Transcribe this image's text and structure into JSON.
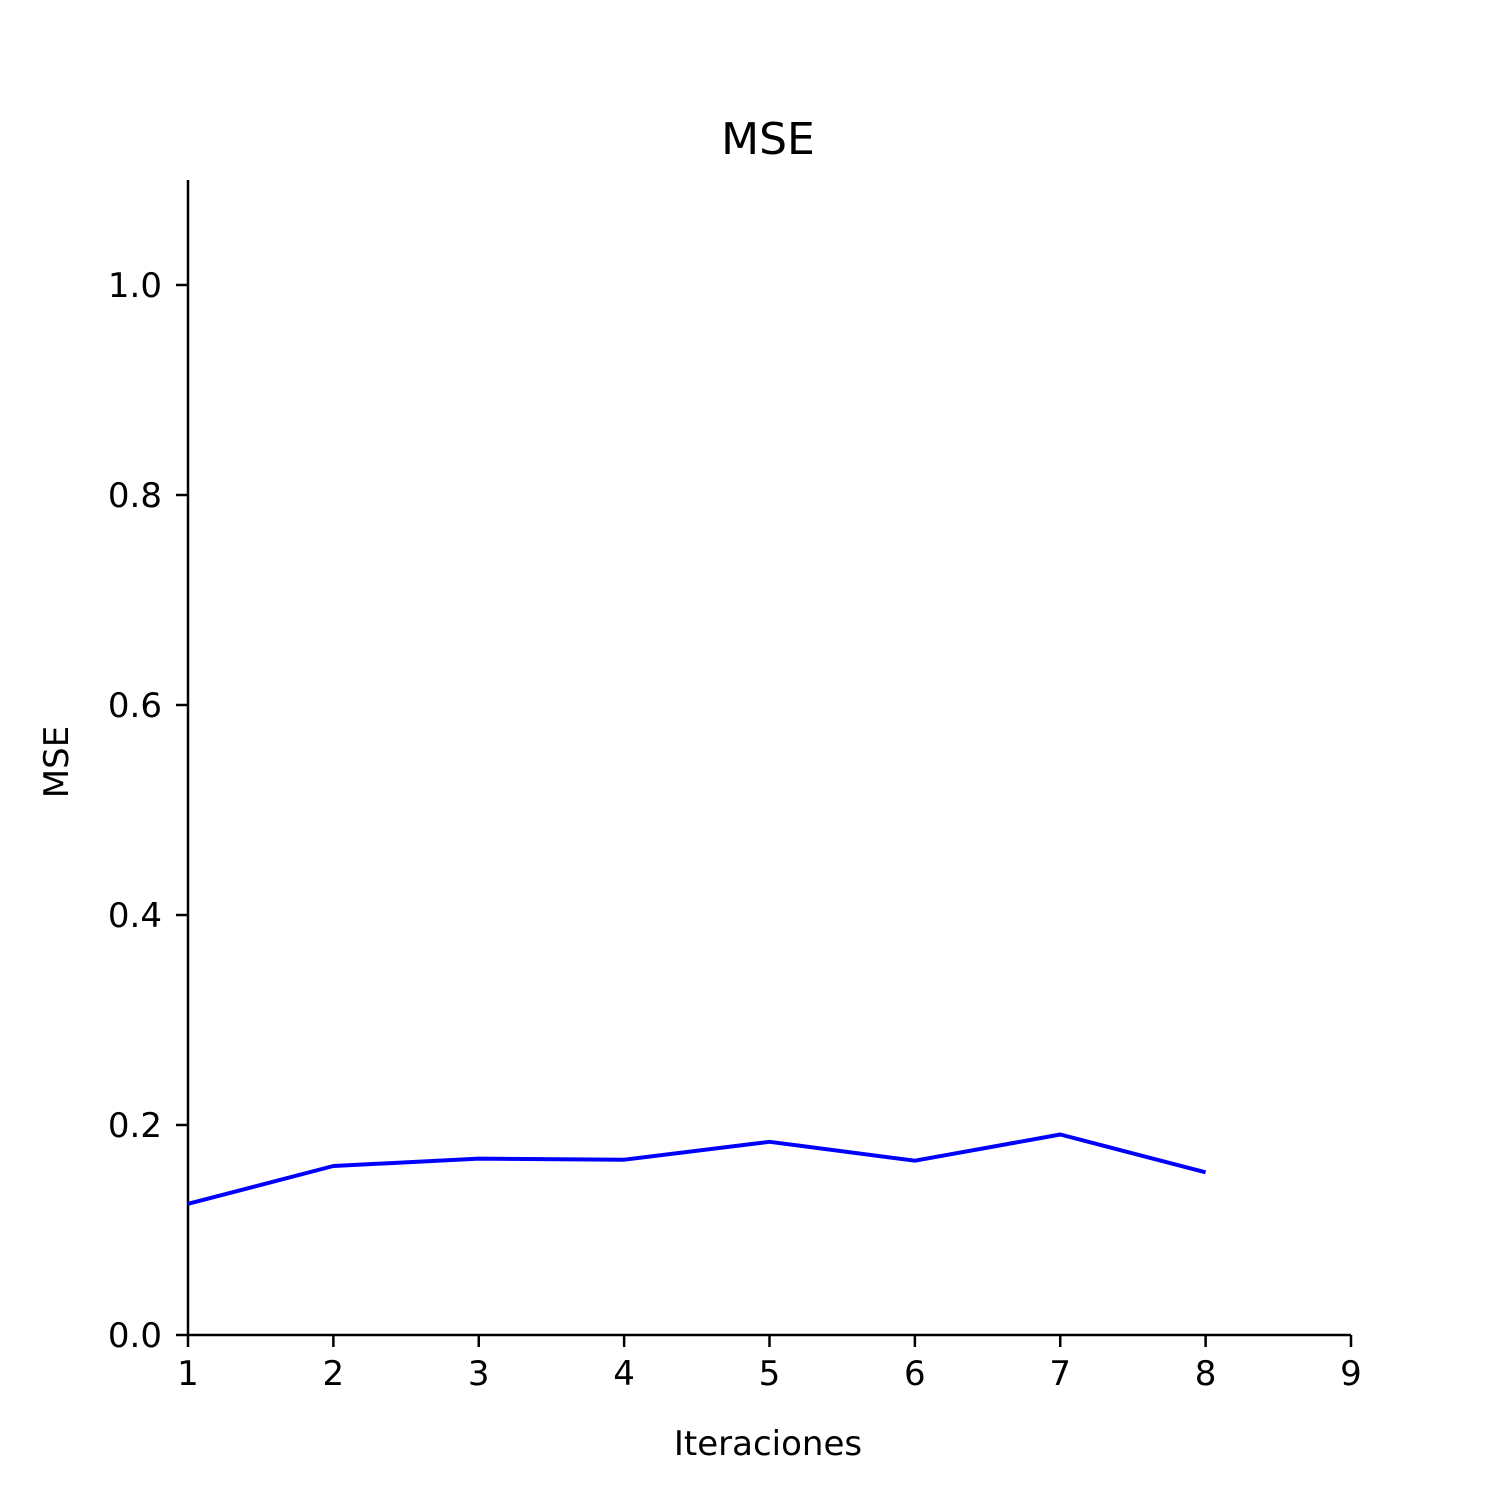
{
  "chart_data": {
    "type": "line",
    "title": "MSE",
    "xlabel": "Iteraciones",
    "ylabel": "MSE",
    "xlim": [
      1,
      9
    ],
    "ylim": [
      0,
      1.1
    ],
    "x_ticks": [
      "1",
      "2",
      "3",
      "4",
      "5",
      "6",
      "7",
      "8",
      "9"
    ],
    "y_ticks": [
      "0.0",
      "0.2",
      "0.4",
      "0.6",
      "0.8",
      "1.0"
    ],
    "grid": false,
    "series": [
      {
        "color": "#0000ff",
        "x": [
          1,
          2,
          3,
          4,
          5,
          6,
          7,
          8
        ],
        "y": [
          0.125,
          0.161,
          0.168,
          0.167,
          0.184,
          0.166,
          0.191,
          0.155
        ]
      }
    ]
  }
}
